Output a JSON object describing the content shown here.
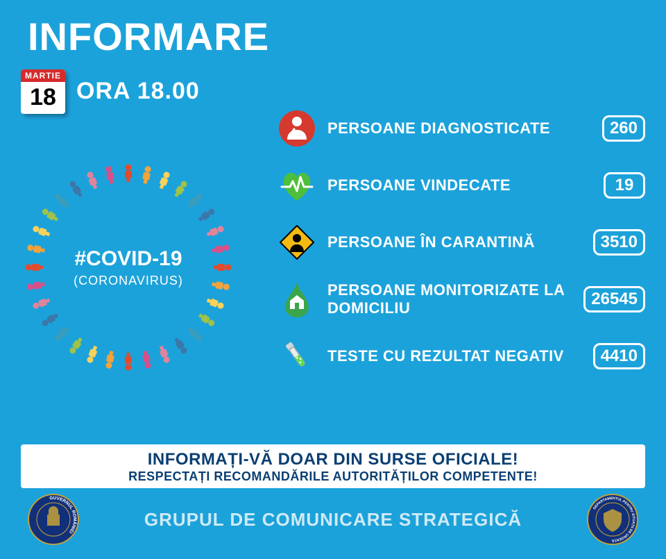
{
  "header": {
    "title": "INFORMARE",
    "date_month": "MARTIE",
    "date_day": "18",
    "time_label": "ORA 18.00"
  },
  "topic": {
    "hashtag": "#COVID-19",
    "sub": "(CORONAVIRUS)"
  },
  "people_ring_colors": [
    "#e34b2d",
    "#f2a33c",
    "#f8d25a",
    "#9fc24a",
    "#3b9dbb",
    "#3b77a8",
    "#e0849c",
    "#d94f87"
  ],
  "stats": [
    {
      "icon": "diagnosed",
      "label": "PERSOANE DIAGNOSTICATE",
      "value": "260",
      "icon_color": "#d6392e"
    },
    {
      "icon": "recovered",
      "label": "PERSOANE VINDECATE",
      "value": "19",
      "icon_color": "#4fbf3a"
    },
    {
      "icon": "quarantine",
      "label": "PERSOANE ÎN CARANTINĂ",
      "value": "3510",
      "icon_color": "#f2bb13"
    },
    {
      "icon": "home",
      "label": "PERSOANE MONITORIZATE LA DOMICILIU",
      "value": "26545",
      "icon_color": "#3aa54a"
    },
    {
      "icon": "test",
      "label": "TESTE CU REZULTAT NEGATIV",
      "value": "4410",
      "icon_color": "#5fe04a"
    }
  ],
  "banner": {
    "line1": "INFORMAȚI-VĂ DOAR DIN SURSE OFICIALE!",
    "line2": "RESPECTAȚI RECOMANDĂRILE AUTORITĂȚILOR COMPETENTE!"
  },
  "footer": {
    "text": "GRUPUL DE COMUNICARE STRATEGICĂ",
    "seal_left_text": "GUVERNUL ROMÂNIEI",
    "seal_right_text": "DEPARTAMENTUL PENTRU SITUAȚII DE URGENȚĂ"
  },
  "colors": {
    "background": "#1ca2da",
    "text": "#ffffff",
    "banner_text": "#0b3f72",
    "seal_blue": "#12307a",
    "seal_gold": "#c6a338"
  }
}
